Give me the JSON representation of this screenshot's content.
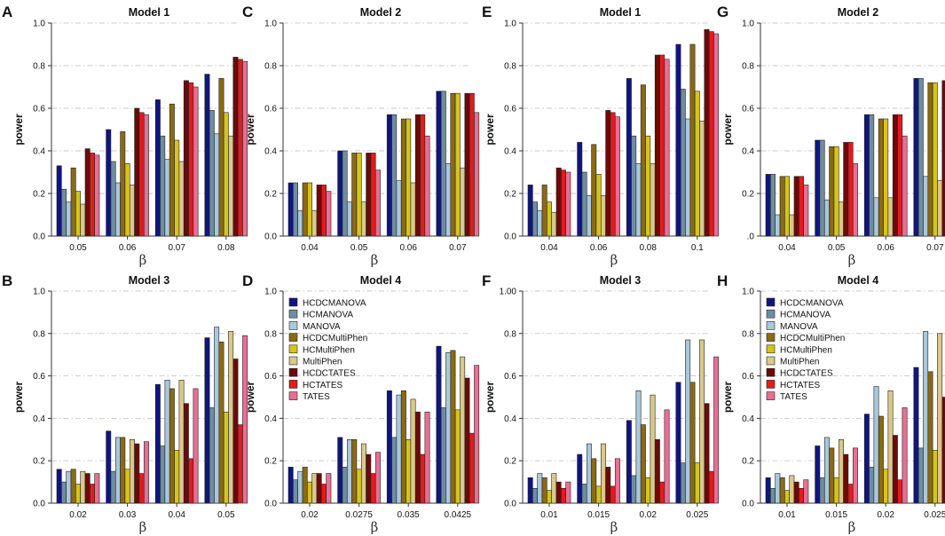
{
  "colors": {
    "HCDCMANOVA": "#0f1580",
    "HCMANOVA": "#6f8da1",
    "MANOVA": "#a8c8dc",
    "HCDCMultiPhen": "#8a6a14",
    "HCMultiPhen": "#d6c41e",
    "MultiPhen": "#d9c98a",
    "HCDCTATES": "#6b0a0a",
    "HCTATES": "#e31b1b",
    "TATES": "#e86f94"
  },
  "chart_data": [
    {
      "type": "bar",
      "panel": "A",
      "title": "Model 1",
      "xlabel": "β",
      "ylabel": "power",
      "ylim": [
        0,
        1
      ],
      "yticks": [
        "0.0",
        "0.2",
        "0.4",
        "0.6",
        "0.8",
        "1.0"
      ],
      "categories": [
        "0.05",
        "0.06",
        "0.07",
        "0.08"
      ],
      "series": [
        {
          "name": "HCDCMANOVA",
          "values": [
            0.33,
            0.5,
            0.64,
            0.76
          ]
        },
        {
          "name": "HCMANOVA",
          "values": [
            0.22,
            0.35,
            0.47,
            0.59
          ]
        },
        {
          "name": "MANOVA",
          "values": [
            0.16,
            0.25,
            0.36,
            0.48
          ]
        },
        {
          "name": "HCDCMultiPhen",
          "values": [
            0.32,
            0.49,
            0.62,
            0.74
          ]
        },
        {
          "name": "HCMultiPhen",
          "values": [
            0.21,
            0.34,
            0.45,
            0.58
          ]
        },
        {
          "name": "MultiPhen",
          "values": [
            0.15,
            0.24,
            0.35,
            0.47
          ]
        },
        {
          "name": "HCDCTATES",
          "values": [
            0.41,
            0.6,
            0.73,
            0.84
          ]
        },
        {
          "name": "HCTATES",
          "values": [
            0.39,
            0.58,
            0.72,
            0.83
          ]
        },
        {
          "name": "TATES",
          "values": [
            0.38,
            0.57,
            0.7,
            0.82
          ]
        }
      ]
    },
    {
      "type": "bar",
      "panel": "C",
      "title": "Model 2",
      "xlabel": "β",
      "ylabel": "power",
      "ylim": [
        0,
        1
      ],
      "yticks": [
        "0.0",
        "0.2",
        "0.4",
        "0.6",
        "0.8",
        "1.0"
      ],
      "categories": [
        "0.04",
        "0.05",
        "0.06",
        "0.07"
      ],
      "series": [
        {
          "name": "HCDCMANOVA",
          "values": [
            0.25,
            0.4,
            0.57,
            0.68
          ]
        },
        {
          "name": "HCMANOVA",
          "values": [
            0.25,
            0.4,
            0.57,
            0.68
          ]
        },
        {
          "name": "MANOVA",
          "values": [
            0.12,
            0.16,
            0.26,
            0.34
          ]
        },
        {
          "name": "HCDCMultiPhen",
          "values": [
            0.25,
            0.39,
            0.55,
            0.67
          ]
        },
        {
          "name": "HCMultiPhen",
          "values": [
            0.25,
            0.39,
            0.55,
            0.67
          ]
        },
        {
          "name": "MultiPhen",
          "values": [
            0.12,
            0.16,
            0.25,
            0.32
          ]
        },
        {
          "name": "HCDCTATES",
          "values": [
            0.24,
            0.39,
            0.57,
            0.67
          ]
        },
        {
          "name": "HCTATES",
          "values": [
            0.24,
            0.39,
            0.57,
            0.67
          ]
        },
        {
          "name": "TATES",
          "values": [
            0.21,
            0.31,
            0.47,
            0.58
          ]
        }
      ]
    },
    {
      "type": "bar",
      "panel": "E",
      "title": "Model 1",
      "xlabel": "β",
      "ylabel": "power",
      "ylim": [
        0,
        1
      ],
      "yticks": [
        "0.0",
        "0.2",
        "0.4",
        "0.6",
        "0.8",
        "1.0"
      ],
      "categories": [
        "0.04",
        "0.06",
        "0.08",
        "0.1"
      ],
      "series": [
        {
          "name": "HCDCMANOVA",
          "values": [
            0.24,
            0.44,
            0.74,
            0.9
          ]
        },
        {
          "name": "HCMANOVA",
          "values": [
            0.16,
            0.3,
            0.47,
            0.69
          ]
        },
        {
          "name": "MANOVA",
          "values": [
            0.12,
            0.19,
            0.34,
            0.55
          ]
        },
        {
          "name": "HCDCMultiPhen",
          "values": [
            0.24,
            0.43,
            0.71,
            0.9
          ]
        },
        {
          "name": "HCMultiPhen",
          "values": [
            0.16,
            0.29,
            0.47,
            0.68
          ]
        },
        {
          "name": "MultiPhen",
          "values": [
            0.11,
            0.19,
            0.34,
            0.54
          ]
        },
        {
          "name": "HCDCTATES",
          "values": [
            0.32,
            0.59,
            0.85,
            0.97
          ]
        },
        {
          "name": "HCTATES",
          "values": [
            0.31,
            0.58,
            0.85,
            0.96
          ]
        },
        {
          "name": "TATES",
          "values": [
            0.3,
            0.56,
            0.83,
            0.95
          ]
        }
      ]
    },
    {
      "type": "bar",
      "panel": "G",
      "title": "Model 2",
      "xlabel": "β",
      "ylabel": "power",
      "ylim": [
        0,
        1
      ],
      "yticks": [
        ".0",
        "0.2",
        "0.4",
        "0.6",
        "0.8",
        "1.0"
      ],
      "categories": [
        "0.04",
        "0.05",
        "0.06",
        "0.07"
      ],
      "series": [
        {
          "name": "HCDCMANOVA",
          "values": [
            0.29,
            0.45,
            0.57,
            0.74
          ]
        },
        {
          "name": "HCMANOVA",
          "values": [
            0.29,
            0.45,
            0.57,
            0.74
          ]
        },
        {
          "name": "MANOVA",
          "values": [
            0.1,
            0.17,
            0.18,
            0.28
          ]
        },
        {
          "name": "HCDCMultiPhen",
          "values": [
            0.28,
            0.42,
            0.55,
            0.72
          ]
        },
        {
          "name": "HCMultiPhen",
          "values": [
            0.28,
            0.42,
            0.55,
            0.72
          ]
        },
        {
          "name": "MultiPhen",
          "values": [
            0.1,
            0.16,
            0.18,
            0.26
          ]
        },
        {
          "name": "HCDCTATES",
          "values": [
            0.28,
            0.44,
            0.57,
            0.73
          ]
        },
        {
          "name": "HCTATES",
          "values": [
            0.28,
            0.44,
            0.57,
            0.73
          ]
        },
        {
          "name": "TATES",
          "values": [
            0.24,
            0.34,
            0.47,
            0.63
          ]
        }
      ]
    },
    {
      "type": "bar",
      "panel": "B",
      "title": "Model 3",
      "xlabel": "β",
      "ylabel": "power",
      "ylim": [
        0,
        1
      ],
      "yticks": [
        "0.0",
        "0.2",
        "0.4",
        "0.6",
        "0.8",
        "1.0"
      ],
      "categories": [
        "0.02",
        "0.03",
        "0.04",
        "0.05"
      ],
      "series": [
        {
          "name": "HCDCMANOVA",
          "values": [
            0.16,
            0.34,
            0.56,
            0.78
          ]
        },
        {
          "name": "HCMANOVA",
          "values": [
            0.1,
            0.15,
            0.27,
            0.45
          ]
        },
        {
          "name": "MANOVA",
          "values": [
            0.15,
            0.31,
            0.58,
            0.83
          ]
        },
        {
          "name": "HCDCMultiPhen",
          "values": [
            0.16,
            0.31,
            0.54,
            0.76
          ]
        },
        {
          "name": "HCMultiPhen",
          "values": [
            0.09,
            0.16,
            0.25,
            0.43
          ]
        },
        {
          "name": "MultiPhen",
          "values": [
            0.15,
            0.3,
            0.58,
            0.81
          ]
        },
        {
          "name": "HCDCTATES",
          "values": [
            0.14,
            0.28,
            0.47,
            0.68
          ]
        },
        {
          "name": "HCTATES",
          "values": [
            0.09,
            0.14,
            0.21,
            0.37
          ]
        },
        {
          "name": "TATES",
          "values": [
            0.14,
            0.29,
            0.54,
            0.79
          ]
        }
      ]
    },
    {
      "type": "bar",
      "panel": "D",
      "title": "Model 4",
      "xlabel": "β",
      "ylabel": "power",
      "ylim": [
        0,
        1
      ],
      "yticks": [
        "0.0",
        "0.2",
        "0.4",
        "0.6",
        "0.8",
        "1.0"
      ],
      "categories": [
        "0.02",
        "0.0275",
        "0.035",
        "0.0425"
      ],
      "series": [
        {
          "name": "HCDCMANOVA",
          "values": [
            0.17,
            0.31,
            0.53,
            0.74
          ]
        },
        {
          "name": "HCMANOVA",
          "values": [
            0.11,
            0.17,
            0.31,
            0.45
          ]
        },
        {
          "name": "MANOVA",
          "values": [
            0.15,
            0.3,
            0.51,
            0.71
          ]
        },
        {
          "name": "HCDCMultiPhen",
          "values": [
            0.17,
            0.3,
            0.53,
            0.72
          ]
        },
        {
          "name": "HCMultiPhen",
          "values": [
            0.1,
            0.16,
            0.3,
            0.44
          ]
        },
        {
          "name": "MultiPhen",
          "values": [
            0.14,
            0.28,
            0.49,
            0.69
          ]
        },
        {
          "name": "HCDCTATES",
          "values": [
            0.14,
            0.23,
            0.43,
            0.59
          ]
        },
        {
          "name": "HCTATES",
          "values": [
            0.09,
            0.14,
            0.23,
            0.33
          ]
        },
        {
          "name": "TATES",
          "values": [
            0.14,
            0.24,
            0.43,
            0.65
          ]
        }
      ]
    },
    {
      "type": "bar",
      "panel": "F",
      "title": "Model 3",
      "xlabel": "β",
      "ylabel": "power",
      "ylim": [
        0,
        1
      ],
      "yticks": [
        "0.0",
        "0.2",
        "0.4",
        "0.6",
        "0.8",
        "1.00"
      ],
      "categories": [
        "0.01",
        "0.015",
        "0.02",
        "0.025"
      ],
      "series": [
        {
          "name": "HCDCMANOVA",
          "values": [
            0.12,
            0.23,
            0.39,
            0.57
          ]
        },
        {
          "name": "HCMANOVA",
          "values": [
            0.07,
            0.09,
            0.13,
            0.19
          ]
        },
        {
          "name": "MANOVA",
          "values": [
            0.14,
            0.28,
            0.53,
            0.77
          ]
        },
        {
          "name": "HCDCMultiPhen",
          "values": [
            0.12,
            0.21,
            0.37,
            0.57
          ]
        },
        {
          "name": "HCMultiPhen",
          "values": [
            0.06,
            0.08,
            0.12,
            0.19
          ]
        },
        {
          "name": "MultiPhen",
          "values": [
            0.14,
            0.28,
            0.51,
            0.77
          ]
        },
        {
          "name": "HCDCTATES",
          "values": [
            0.1,
            0.17,
            0.3,
            0.47
          ]
        },
        {
          "name": "HCTATES",
          "values": [
            0.07,
            0.08,
            0.1,
            0.15
          ]
        },
        {
          "name": "TATES",
          "values": [
            0.1,
            0.21,
            0.44,
            0.69
          ]
        }
      ]
    },
    {
      "type": "bar",
      "panel": "H",
      "title": "Model 4",
      "xlabel": "β",
      "ylabel": "power",
      "ylim": [
        0,
        1
      ],
      "yticks": [
        "0.0",
        "0.2",
        "0.4",
        "0.6",
        "0.8",
        "1.0"
      ],
      "categories": [
        "0.01",
        "0.015",
        "0.02",
        "0.025"
      ],
      "series": [
        {
          "name": "HCDCMANOVA",
          "values": [
            0.12,
            0.27,
            0.42,
            0.64
          ]
        },
        {
          "name": "HCMANOVA",
          "values": [
            0.07,
            0.12,
            0.17,
            0.26
          ]
        },
        {
          "name": "MANOVA",
          "values": [
            0.14,
            0.31,
            0.55,
            0.81
          ]
        },
        {
          "name": "HCDCMultiPhen",
          "values": [
            0.12,
            0.26,
            0.41,
            0.62
          ]
        },
        {
          "name": "HCMultiPhen",
          "values": [
            0.06,
            0.12,
            0.16,
            0.25
          ]
        },
        {
          "name": "MultiPhen",
          "values": [
            0.13,
            0.3,
            0.53,
            0.8
          ]
        },
        {
          "name": "HCDCTATES",
          "values": [
            0.1,
            0.23,
            0.32,
            0.5
          ]
        },
        {
          "name": "HCTATES",
          "values": [
            0.07,
            0.09,
            0.11,
            0.18
          ]
        },
        {
          "name": "TATES",
          "values": [
            0.11,
            0.26,
            0.45,
            0.73
          ]
        }
      ]
    }
  ],
  "legend": {
    "entries": [
      "HCDCMANOVA",
      "HCMANOVA",
      "MANOVA",
      "HCDCMultiPhen",
      "HCMultiPhen",
      "MultiPhen",
      "HCDCTATES",
      "HCTATES",
      "TATES"
    ]
  }
}
